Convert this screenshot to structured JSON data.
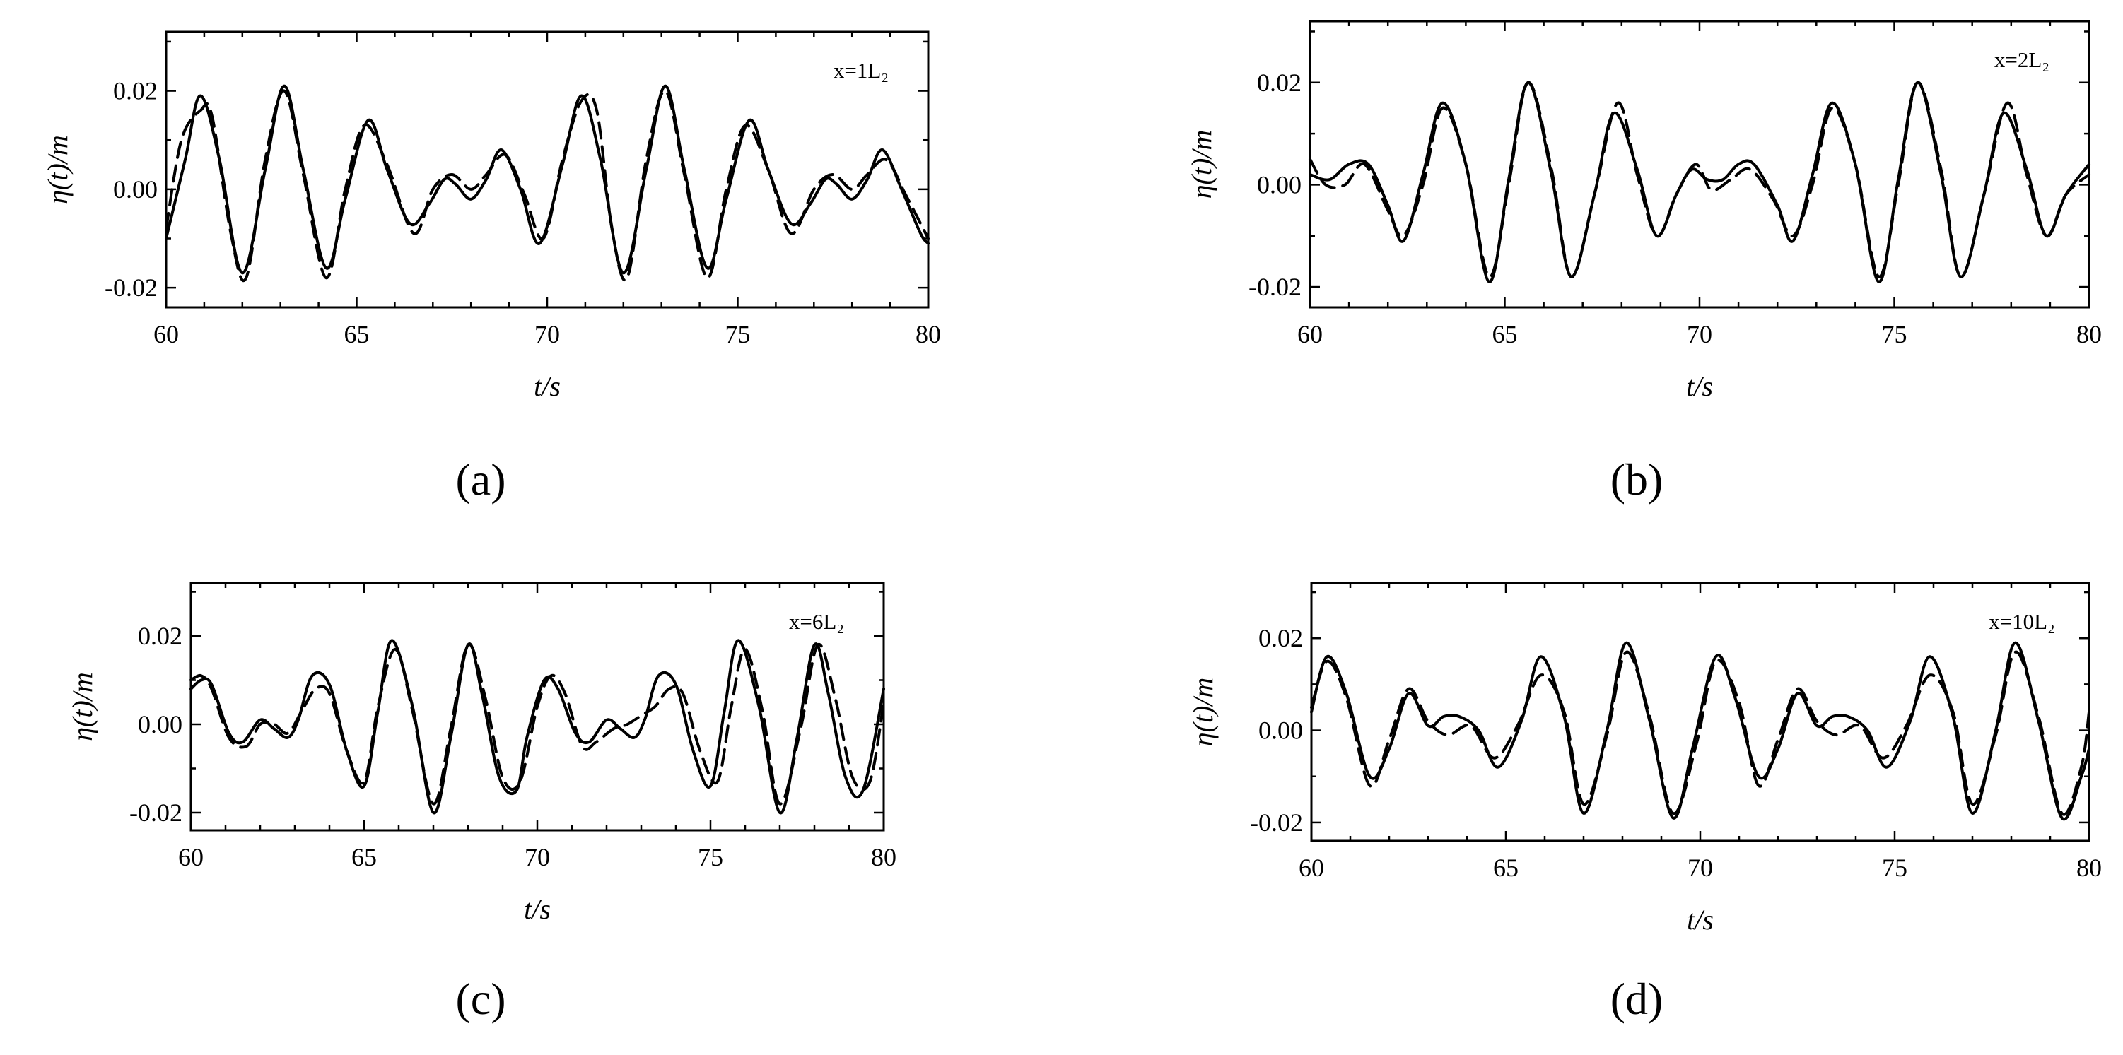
{
  "chart_data": [
    {
      "type": "line",
      "panel_label": "(a)",
      "xlabel": "t/s",
      "ylabel": "η(t)/m",
      "annotation": "x=1L₂",
      "xlim": [
        60,
        80
      ],
      "ylim": [
        -0.024,
        0.032
      ],
      "xticks": [
        60,
        65,
        70,
        75,
        80
      ],
      "yticks": [
        -0.02,
        0.0,
        0.02
      ],
      "xtick_labels": [
        "60",
        "65",
        "70",
        "75",
        "80"
      ],
      "ytick_labels": [
        "-0.02",
        "0.00",
        "0.02"
      ],
      "grid": false,
      "series": [
        {
          "style": "solid",
          "x": [
            60.0,
            60.5,
            60.9,
            61.4,
            62.0,
            62.6,
            63.1,
            63.6,
            64.2,
            64.7,
            65.3,
            65.8,
            66.4,
            66.9,
            67.3,
            67.6,
            68.0,
            68.4,
            68.8,
            69.3,
            69.8,
            70.4,
            70.9,
            71.4,
            72.0,
            72.6,
            73.1,
            73.6,
            74.2,
            74.7,
            75.3,
            75.8,
            76.4,
            76.9,
            77.3,
            77.6,
            78.0,
            78.4,
            78.8,
            79.3,
            79.8,
            80.0
          ],
          "y": [
            -0.01,
            0.006,
            0.019,
            0.006,
            -0.017,
            0.004,
            0.021,
            0.004,
            -0.016,
            -0.002,
            0.014,
            0.004,
            -0.007,
            -0.003,
            0.002,
            0.001,
            -0.002,
            0.002,
            0.008,
            0.0,
            -0.011,
            0.005,
            0.019,
            0.006,
            -0.017,
            0.004,
            0.021,
            0.004,
            -0.016,
            -0.002,
            0.014,
            0.004,
            -0.007,
            -0.003,
            0.002,
            0.001,
            -0.002,
            0.002,
            0.008,
            0.0,
            -0.009,
            -0.011
          ]
        },
        {
          "style": "dashed",
          "x": [
            60.0,
            60.4,
            60.9,
            61.2,
            61.7,
            62.1,
            62.6,
            63.1,
            63.6,
            64.2,
            64.7,
            65.2,
            65.8,
            66.5,
            67.0,
            67.5,
            68.0,
            68.4,
            68.9,
            69.4,
            69.9,
            70.4,
            70.9,
            71.3,
            71.7,
            72.1,
            72.6,
            73.1,
            73.6,
            74.2,
            74.7,
            75.2,
            75.8,
            76.4,
            77.0,
            77.5,
            78.0,
            78.4,
            78.9,
            79.4,
            80.0
          ],
          "y": [
            -0.008,
            0.01,
            0.016,
            0.015,
            -0.009,
            -0.018,
            0.006,
            0.02,
            0.003,
            -0.018,
            0.0,
            0.013,
            0.005,
            -0.009,
            0.0,
            0.003,
            0.0,
            0.003,
            0.007,
            -0.001,
            -0.01,
            0.006,
            0.018,
            0.016,
            -0.008,
            -0.018,
            0.006,
            0.02,
            0.003,
            -0.018,
            0.0,
            0.013,
            0.004,
            -0.009,
            0.0,
            0.003,
            0.0,
            0.003,
            0.006,
            -0.001,
            -0.01
          ]
        }
      ]
    },
    {
      "type": "line",
      "panel_label": "(b)",
      "xlabel": "t/s",
      "ylabel": "η(t)/m",
      "annotation": "x=2L₂",
      "xlim": [
        60,
        80
      ],
      "ylim": [
        -0.024,
        0.032
      ],
      "xticks": [
        60,
        65,
        70,
        75,
        80
      ],
      "yticks": [
        -0.02,
        0.0,
        0.02
      ],
      "xtick_labels": [
        "60",
        "65",
        "70",
        "75",
        "80"
      ],
      "ytick_labels": [
        "-0.02",
        "0.00",
        "0.02"
      ],
      "grid": false,
      "series": [
        {
          "style": "solid",
          "x": [
            60.0,
            60.5,
            61.0,
            61.5,
            62.0,
            62.4,
            62.9,
            63.4,
            64.0,
            64.6,
            65.1,
            65.6,
            66.2,
            66.7,
            67.3,
            67.8,
            68.4,
            68.9,
            69.4,
            69.8,
            70.2,
            70.6,
            71.0,
            71.4,
            72.0,
            72.4,
            72.9,
            73.4,
            74.0,
            74.6,
            75.1,
            75.6,
            76.2,
            76.7,
            77.3,
            77.8,
            78.4,
            78.9,
            79.4,
            80.0
          ],
          "y": [
            0.002,
            0.001,
            0.004,
            0.004,
            -0.004,
            -0.011,
            0.002,
            0.016,
            0.004,
            -0.019,
            0.001,
            0.02,
            0.002,
            -0.018,
            -0.002,
            0.014,
            0.003,
            -0.01,
            -0.002,
            0.003,
            0.001,
            0.001,
            0.004,
            0.004,
            -0.004,
            -0.011,
            0.002,
            0.016,
            0.004,
            -0.019,
            0.001,
            0.02,
            0.002,
            -0.018,
            -0.002,
            0.014,
            0.003,
            -0.01,
            -0.002,
            0.004
          ]
        },
        {
          "style": "dashed",
          "x": [
            60.0,
            60.4,
            60.9,
            61.4,
            62.0,
            62.4,
            62.9,
            63.4,
            64.0,
            64.6,
            65.1,
            65.6,
            66.2,
            66.7,
            67.3,
            67.9,
            68.4,
            68.9,
            69.4,
            69.9,
            70.3,
            70.8,
            71.3,
            71.9,
            72.4,
            72.9,
            73.4,
            74.0,
            74.6,
            75.1,
            75.6,
            76.2,
            76.7,
            77.3,
            77.9,
            78.4,
            78.9,
            79.4,
            80.0
          ],
          "y": [
            0.005,
            0.0,
            0.0,
            0.004,
            -0.005,
            -0.01,
            0.0,
            0.015,
            0.004,
            -0.018,
            0.0,
            0.02,
            0.003,
            -0.018,
            -0.002,
            0.016,
            0.002,
            -0.01,
            -0.002,
            0.004,
            -0.001,
            0.001,
            0.003,
            -0.003,
            -0.01,
            0.0,
            0.015,
            0.004,
            -0.018,
            0.0,
            0.02,
            0.003,
            -0.018,
            -0.002,
            0.016,
            0.002,
            -0.01,
            -0.002,
            0.002
          ]
        }
      ]
    },
    {
      "type": "line",
      "panel_label": "(c)",
      "xlabel": "t/s",
      "ylabel": "η(t)/m",
      "annotation": "x=6L₂",
      "xlim": [
        60,
        80
      ],
      "ylim": [
        -0.024,
        0.032
      ],
      "xticks": [
        60,
        65,
        70,
        75,
        80
      ],
      "yticks": [
        -0.02,
        0.0,
        0.02
      ],
      "xtick_labels": [
        "60",
        "65",
        "70",
        "75",
        "80"
      ],
      "ytick_labels": [
        "-0.02",
        "0.00",
        "0.02"
      ],
      "grid": false,
      "series": [
        {
          "style": "solid",
          "x": [
            60.0,
            60.3,
            60.6,
            61.1,
            61.5,
            62.0,
            62.4,
            62.8,
            63.1,
            63.5,
            64.0,
            64.5,
            65.0,
            65.4,
            65.8,
            66.4,
            67.0,
            67.5,
            68.0,
            68.4,
            68.9,
            69.4,
            69.7,
            70.2,
            70.6,
            71.1,
            71.5,
            72.0,
            72.4,
            72.8,
            73.1,
            73.5,
            74.0,
            74.5,
            75.0,
            75.4,
            75.8,
            76.4,
            77.0,
            77.5,
            78.0,
            78.4,
            78.9,
            79.4,
            80.0
          ],
          "y": [
            0.008,
            0.01,
            0.009,
            -0.002,
            -0.004,
            0.001,
            -0.001,
            -0.003,
            0.001,
            0.011,
            0.009,
            -0.006,
            -0.014,
            0.003,
            0.019,
            0.004,
            -0.02,
            -0.003,
            0.018,
            0.007,
            -0.012,
            -0.015,
            -0.003,
            0.01,
            0.008,
            -0.002,
            -0.004,
            0.001,
            -0.001,
            -0.003,
            0.001,
            0.011,
            0.009,
            -0.006,
            -0.014,
            0.003,
            0.019,
            0.004,
            -0.02,
            -0.003,
            0.018,
            0.007,
            -0.012,
            -0.015,
            0.008
          ]
        },
        {
          "style": "dashed",
          "x": [
            60.0,
            60.3,
            60.6,
            61.1,
            61.6,
            62.0,
            62.4,
            62.8,
            63.2,
            63.6,
            64.0,
            64.5,
            65.0,
            65.4,
            65.9,
            66.4,
            67.0,
            67.5,
            68.0,
            68.5,
            69.0,
            69.5,
            70.0,
            70.4,
            70.8,
            71.3,
            71.7,
            72.2,
            72.6,
            73.0,
            73.4,
            73.8,
            74.2,
            74.7,
            75.2,
            75.6,
            76.0,
            76.5,
            77.0,
            77.6,
            78.1,
            78.6,
            79.1,
            79.6,
            80.0
          ],
          "y": [
            0.01,
            0.011,
            0.008,
            -0.003,
            -0.005,
            0.0,
            0.0,
            -0.002,
            0.003,
            0.008,
            0.007,
            -0.006,
            -0.013,
            0.004,
            0.017,
            0.003,
            -0.018,
            -0.001,
            0.018,
            0.006,
            -0.012,
            -0.013,
            0.004,
            0.011,
            0.007,
            -0.005,
            -0.004,
            -0.001,
            0.0,
            0.002,
            0.004,
            0.008,
            0.007,
            -0.006,
            -0.013,
            0.004,
            0.017,
            0.003,
            -0.018,
            -0.001,
            0.018,
            0.006,
            -0.012,
            -0.013,
            0.005
          ]
        }
      ]
    },
    {
      "type": "line",
      "panel_label": "(d)",
      "xlabel": "t/s",
      "ylabel": "η(t)/m",
      "annotation": "x=10L₂",
      "xlim": [
        60,
        80
      ],
      "ylim": [
        -0.024,
        0.032
      ],
      "xticks": [
        60,
        65,
        70,
        75,
        80
      ],
      "yticks": [
        -0.02,
        0.0,
        0.02
      ],
      "xtick_labels": [
        "60",
        "65",
        "70",
        "75",
        "80"
      ],
      "ytick_labels": [
        "-0.02",
        "0.00",
        "0.02"
      ],
      "grid": false,
      "series": [
        {
          "style": "solid",
          "x": [
            60.0,
            60.4,
            60.9,
            61.5,
            62.0,
            62.5,
            63.0,
            63.4,
            63.8,
            64.3,
            64.8,
            65.4,
            65.9,
            66.5,
            67.0,
            67.6,
            68.1,
            68.7,
            69.3,
            69.8,
            70.4,
            70.9,
            71.5,
            72.0,
            72.5,
            73.0,
            73.4,
            73.8,
            74.3,
            74.8,
            75.4,
            75.9,
            76.5,
            77.0,
            77.6,
            78.1,
            78.7,
            79.3,
            79.8,
            80.0
          ],
          "y": [
            0.004,
            0.016,
            0.008,
            -0.01,
            -0.004,
            0.008,
            0.001,
            0.003,
            0.003,
            0.0,
            -0.008,
            0.002,
            0.016,
            0.003,
            -0.018,
            0.0,
            0.019,
            0.002,
            -0.019,
            -0.004,
            0.016,
            0.007,
            -0.01,
            -0.004,
            0.008,
            0.001,
            0.003,
            0.003,
            0.0,
            -0.008,
            0.002,
            0.016,
            0.003,
            -0.018,
            0.0,
            0.019,
            0.002,
            -0.019,
            -0.01,
            -0.004
          ]
        },
        {
          "style": "dashed",
          "x": [
            60.0,
            60.4,
            60.9,
            61.5,
            62.0,
            62.5,
            63.0,
            63.5,
            64.1,
            64.7,
            65.3,
            65.9,
            66.5,
            67.0,
            67.6,
            68.1,
            68.7,
            69.3,
            69.9,
            70.4,
            71.0,
            71.5,
            72.0,
            72.5,
            73.0,
            73.5,
            74.1,
            74.7,
            75.3,
            75.9,
            76.5,
            77.0,
            77.6,
            78.1,
            78.7,
            79.3,
            79.8,
            80.0
          ],
          "y": [
            0.005,
            0.015,
            0.007,
            -0.012,
            -0.002,
            0.009,
            0.002,
            -0.001,
            0.001,
            -0.006,
            0.001,
            0.012,
            0.004,
            -0.016,
            -0.001,
            0.017,
            0.003,
            -0.018,
            -0.003,
            0.015,
            0.006,
            -0.012,
            -0.002,
            0.009,
            0.002,
            -0.001,
            0.001,
            -0.006,
            0.001,
            0.012,
            0.004,
            -0.016,
            -0.001,
            0.017,
            0.003,
            -0.018,
            -0.008,
            0.004
          ]
        }
      ]
    }
  ]
}
